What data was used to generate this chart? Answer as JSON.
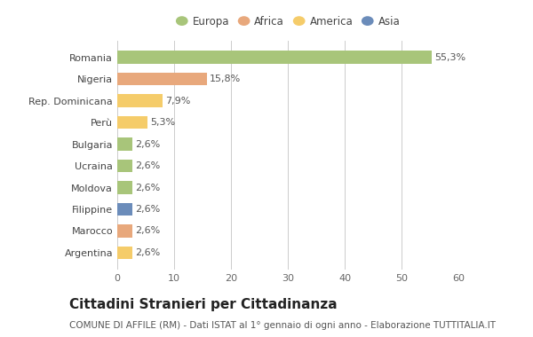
{
  "categories": [
    "Romania",
    "Nigeria",
    "Rep. Dominicana",
    "Perù",
    "Bulgaria",
    "Ucraina",
    "Moldova",
    "Filippine",
    "Marocco",
    "Argentina"
  ],
  "values": [
    55.3,
    15.8,
    7.9,
    5.3,
    2.6,
    2.6,
    2.6,
    2.6,
    2.6,
    2.6
  ],
  "labels": [
    "55,3%",
    "15,8%",
    "7,9%",
    "5,3%",
    "2,6%",
    "2,6%",
    "2,6%",
    "2,6%",
    "2,6%",
    "2,6%"
  ],
  "bar_colors": [
    "#a8c57a",
    "#e8a87c",
    "#f5cc6a",
    "#f5cc6a",
    "#a8c57a",
    "#a8c57a",
    "#a8c57a",
    "#6b8cba",
    "#e8a87c",
    "#f5cc6a"
  ],
  "legend_labels": [
    "Europa",
    "Africa",
    "America",
    "Asia"
  ],
  "legend_colors": [
    "#a8c57a",
    "#e8a87c",
    "#f5cc6a",
    "#6b8cba"
  ],
  "xlim": [
    0,
    60
  ],
  "xticks": [
    0,
    10,
    20,
    30,
    40,
    50,
    60
  ],
  "title": "Cittadini Stranieri per Cittadinanza",
  "subtitle": "COMUNE DI AFFILE (RM) - Dati ISTAT al 1° gennaio di ogni anno - Elaborazione TUTTITALIA.IT",
  "bg_color": "#ffffff",
  "grid_color": "#cccccc",
  "bar_height": 0.6,
  "label_fontsize": 8.0,
  "ytick_fontsize": 8.0,
  "xtick_fontsize": 8.0,
  "title_fontsize": 11,
  "subtitle_fontsize": 7.5,
  "legend_fontsize": 8.5
}
